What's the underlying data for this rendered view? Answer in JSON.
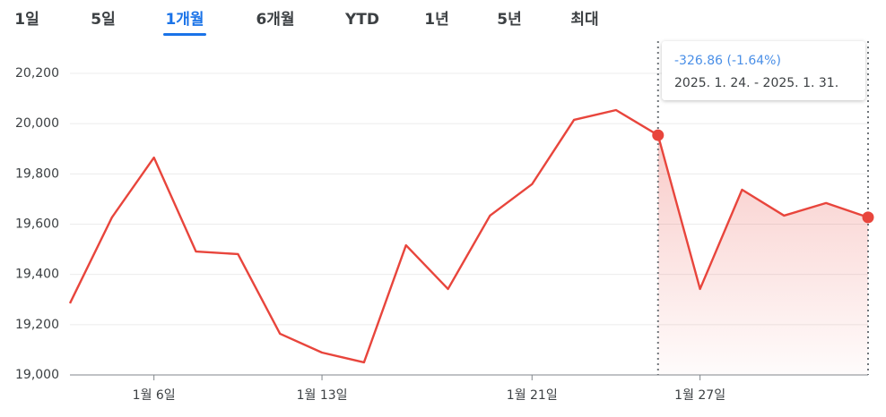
{
  "tabs": [
    "1일",
    "5일",
    "1개월",
    "6개월",
    "YTD",
    "1년",
    "5년",
    "최대"
  ],
  "active_tab": 2,
  "chart_data": {
    "type": "line",
    "categories": [
      null,
      null,
      "1월 6일",
      null,
      null,
      null,
      "1월 13일",
      null,
      null,
      null,
      null,
      "1월 21일",
      null,
      null,
      null,
      "1월 27일",
      null,
      null,
      null,
      null
    ],
    "series": [
      {
        "color": "#e8453c",
        "values": [
          19285,
          19627,
          19865,
          19491,
          19481,
          19164,
          19089,
          19050,
          19516,
          19342,
          19634,
          19759,
          20015,
          20054,
          19954,
          19342,
          19737,
          19634,
          19684,
          19627.14
        ]
      }
    ],
    "ylim": [
      19000,
      20200
    ],
    "yticks": [
      {
        "value": 19000,
        "label": "19,000"
      },
      {
        "value": 19200,
        "label": "19,200"
      },
      {
        "value": 19400,
        "label": "19,400"
      },
      {
        "value": 19600,
        "label": "19,600"
      },
      {
        "value": 19800,
        "label": "19,800"
      },
      {
        "value": 20000,
        "label": "20,000"
      },
      {
        "value": 20200,
        "label": "20,200"
      }
    ],
    "grid": true,
    "selection": [
      14,
      19
    ],
    "tooltip": {
      "change": "-326.86 (-1.64%)",
      "range": "2025. 1. 24. - 2025. 1. 31."
    },
    "tooltip_color": "#4a8fe7"
  }
}
